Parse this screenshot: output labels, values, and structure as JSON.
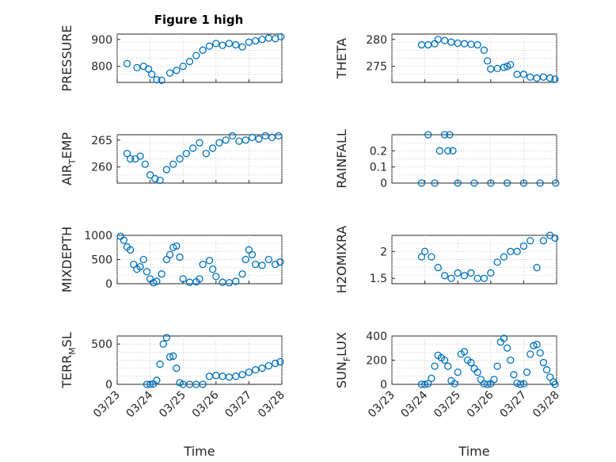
{
  "figure": {
    "title": "Figure 1 high",
    "marker_color": "#0072BD",
    "x_tick_labels": [
      "03/23",
      "03/24",
      "03/25",
      "03/26",
      "03/27",
      "03/28"
    ],
    "x_label": "Time"
  },
  "chart_data": [
    {
      "type": "scatter",
      "ylabel": "PRESSURE",
      "ylim": [
        740,
        920
      ],
      "yticks": [
        800,
        900
      ],
      "xlim": [
        0,
        5
      ],
      "grid": true,
      "x": [
        0.3,
        0.6,
        0.8,
        0.95,
        1.05,
        1.2,
        1.35,
        1.6,
        1.8,
        2.0,
        2.2,
        2.4,
        2.6,
        2.8,
        3.0,
        3.2,
        3.4,
        3.6,
        3.8,
        4.0,
        4.2,
        4.4,
        4.6,
        4.8,
        4.97
      ],
      "y": [
        810,
        795,
        800,
        790,
        770,
        750,
        748,
        775,
        785,
        800,
        818,
        840,
        860,
        875,
        885,
        878,
        885,
        880,
        872,
        890,
        895,
        900,
        905,
        903,
        910
      ]
    },
    {
      "type": "scatter",
      "ylabel": "THETA",
      "ylim": [
        272,
        281
      ],
      "yticks": [
        275,
        280
      ],
      "xlim": [
        0,
        5
      ],
      "grid": true,
      "x": [
        0.9,
        1.1,
        1.3,
        1.4,
        1.6,
        1.8,
        2.0,
        2.2,
        2.4,
        2.6,
        2.8,
        2.9,
        3.0,
        3.2,
        3.4,
        3.5,
        3.6,
        3.8,
        4.0,
        4.2,
        4.4,
        4.6,
        4.8,
        4.95
      ],
      "y": [
        279,
        279,
        279.2,
        280,
        279.8,
        279.5,
        279.3,
        279.2,
        279.1,
        279,
        278,
        276,
        274.5,
        274.6,
        274.8,
        275,
        275.3,
        273.5,
        273.5,
        273,
        272.8,
        273,
        272.8,
        272.6
      ]
    },
    {
      "type": "scatter",
      "ylabel": "AIR_TEMP",
      "ylim": [
        257,
        266
      ],
      "yticks": [
        260,
        265
      ],
      "xlim": [
        0,
        5
      ],
      "grid": true,
      "x": [
        0.3,
        0.4,
        0.55,
        0.7,
        0.85,
        1.0,
        1.15,
        1.3,
        1.5,
        1.7,
        1.9,
        2.1,
        2.3,
        2.5,
        2.7,
        2.9,
        3.1,
        3.3,
        3.5,
        3.7,
        3.9,
        4.1,
        4.3,
        4.5,
        4.7,
        4.9
      ],
      "y": [
        262.5,
        261.5,
        261.5,
        262,
        260.5,
        258.5,
        257.8,
        257.5,
        259.5,
        260.5,
        261.5,
        262.5,
        263.5,
        264.5,
        262.5,
        263.5,
        264.5,
        265,
        265.8,
        264.8,
        265,
        265.5,
        265.2,
        265.8,
        265.5,
        265.8
      ]
    },
    {
      "type": "scatter",
      "ylabel": "RAINFALL",
      "ylim": [
        0,
        0.3
      ],
      "yticks": [
        0,
        0.1,
        0.2
      ],
      "xlim": [
        0,
        5
      ],
      "grid": true,
      "x": [
        0.9,
        1.1,
        1.3,
        1.45,
        1.6,
        1.7,
        1.75,
        1.85,
        2.0,
        2.5,
        3.0,
        3.5,
        4.0,
        4.5,
        4.97
      ],
      "y": [
        0,
        0.3,
        0,
        0.2,
        0.3,
        0.2,
        0.3,
        0.2,
        0,
        0,
        0,
        0,
        0,
        0,
        0
      ]
    },
    {
      "type": "scatter",
      "ylabel": "MIXDEPTH",
      "ylim": [
        0,
        1000
      ],
      "yticks": [
        0,
        500,
        1000
      ],
      "xlim": [
        0,
        5
      ],
      "grid": true,
      "x": [
        0.1,
        0.2,
        0.3,
        0.4,
        0.5,
        0.6,
        0.7,
        0.8,
        0.9,
        1.0,
        1.1,
        1.2,
        1.35,
        1.5,
        1.6,
        1.7,
        1.8,
        1.9,
        2.0,
        2.2,
        2.4,
        2.5,
        2.6,
        2.8,
        2.9,
        3.0,
        3.2,
        3.4,
        3.6,
        3.8,
        3.9,
        4.0,
        4.1,
        4.2,
        4.4,
        4.6,
        4.8,
        4.95
      ],
      "y": [
        980,
        900,
        760,
        700,
        400,
        300,
        350,
        500,
        250,
        100,
        20,
        50,
        200,
        500,
        600,
        750,
        780,
        550,
        100,
        30,
        40,
        100,
        400,
        480,
        300,
        150,
        30,
        20,
        50,
        200,
        500,
        700,
        600,
        400,
        380,
        500,
        400,
        450
      ]
    },
    {
      "type": "scatter",
      "ylabel": "H2OMIXRA",
      "ylim": [
        1.4,
        2.3
      ],
      "yticks": [
        1.5,
        2
      ],
      "xlim": [
        0,
        5
      ],
      "grid": true,
      "x": [
        0.9,
        1.0,
        1.2,
        1.4,
        1.6,
        1.8,
        2.0,
        2.2,
        2.4,
        2.6,
        2.8,
        3.0,
        3.2,
        3.4,
        3.6,
        3.8,
        4.0,
        4.2,
        4.4,
        4.6,
        4.8,
        4.95
      ],
      "y": [
        1.9,
        2.0,
        1.9,
        1.7,
        1.55,
        1.5,
        1.6,
        1.55,
        1.6,
        1.5,
        1.5,
        1.6,
        1.8,
        1.9,
        2.0,
        2.0,
        2.1,
        2.2,
        1.7,
        2.2,
        2.3,
        2.25
      ]
    },
    {
      "type": "scatter",
      "ylabel": "TERR_MSL",
      "ylim": [
        0,
        600
      ],
      "yticks": [
        0,
        500
      ],
      "xlim": [
        0,
        5
      ],
      "grid": true,
      "x": [
        0.9,
        1.0,
        1.1,
        1.2,
        1.3,
        1.4,
        1.5,
        1.6,
        1.7,
        1.8,
        1.9,
        2.0,
        2.2,
        2.4,
        2.6,
        2.8,
        3.0,
        3.2,
        3.4,
        3.6,
        3.8,
        4.0,
        4.2,
        4.4,
        4.6,
        4.8,
        4.95
      ],
      "y": [
        0,
        0,
        5,
        50,
        250,
        500,
        580,
        340,
        350,
        200,
        20,
        0,
        0,
        0,
        0,
        100,
        110,
        100,
        90,
        100,
        120,
        150,
        180,
        200,
        230,
        260,
        280
      ]
    },
    {
      "type": "scatter",
      "ylabel": "SUN_FLUX",
      "ylim": [
        0,
        400
      ],
      "yticks": [
        0,
        200,
        400
      ],
      "xlim": [
        0,
        5
      ],
      "grid": true,
      "x": [
        0.9,
        1.0,
        1.1,
        1.2,
        1.3,
        1.4,
        1.5,
        1.6,
        1.7,
        1.8,
        1.9,
        2.0,
        2.1,
        2.2,
        2.3,
        2.4,
        2.5,
        2.6,
        2.7,
        2.8,
        2.9,
        3.0,
        3.1,
        3.2,
        3.3,
        3.4,
        3.5,
        3.6,
        3.7,
        3.8,
        3.9,
        4.0,
        4.1,
        4.2,
        4.3,
        4.4,
        4.5,
        4.6,
        4.7,
        4.8,
        4.9,
        4.95
      ],
      "y": [
        0,
        0,
        5,
        50,
        150,
        240,
        220,
        200,
        150,
        30,
        5,
        100,
        250,
        270,
        200,
        180,
        130,
        100,
        40,
        5,
        0,
        5,
        40,
        150,
        350,
        380,
        300,
        200,
        80,
        10,
        0,
        5,
        100,
        250,
        320,
        330,
        260,
        180,
        120,
        60,
        20,
        0
      ]
    }
  ],
  "panel_labels": [
    {
      "main": "PRESSURE",
      "sub": "",
      "rest": ""
    },
    {
      "main": "THETA",
      "sub": "",
      "rest": ""
    },
    {
      "main": "AIR",
      "sub": "T",
      "rest": "EMP"
    },
    {
      "main": "RAINFALL",
      "sub": "",
      "rest": ""
    },
    {
      "main": "MIXDEPTH",
      "sub": "",
      "rest": ""
    },
    {
      "main": "H2OMIXRA",
      "sub": "",
      "rest": ""
    },
    {
      "main": "TERR",
      "sub": "M",
      "rest": "SL"
    },
    {
      "main": "SUN",
      "sub": "F",
      "rest": "LUX"
    }
  ]
}
